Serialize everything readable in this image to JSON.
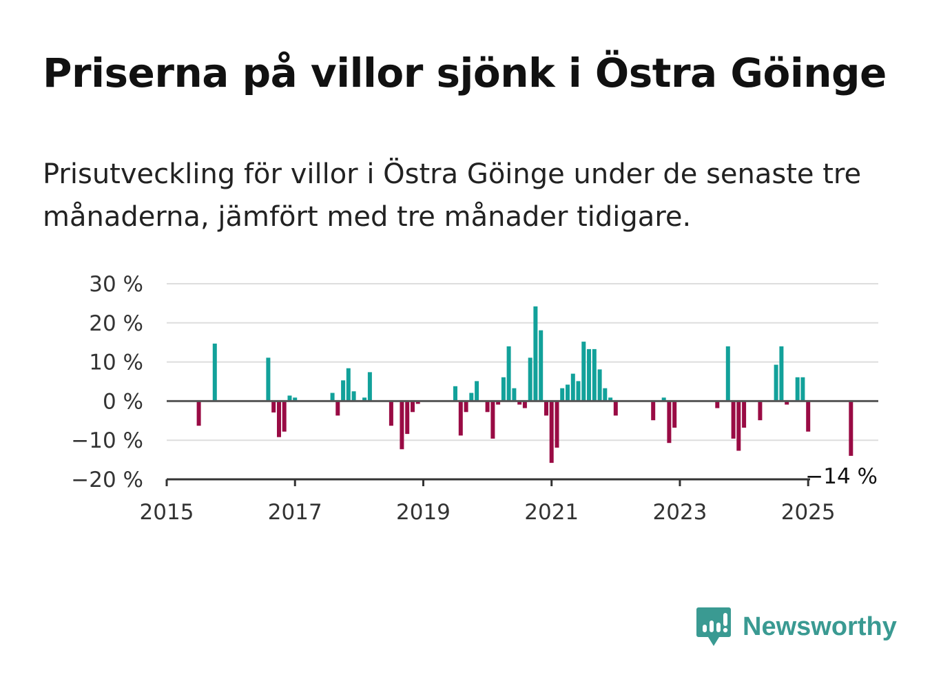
{
  "title": "Priserna på villor sjönk i Östra Göinge",
  "subtitle": "Prisutveckling för villor i Östra Göinge under de senaste tre månaderna, jämfört med tre månader tidigare.",
  "brand": {
    "name": "Newsworthy",
    "color": "#3a9a92"
  },
  "colors": {
    "positive": "#12a19a",
    "negative": "#990b44",
    "grid": "#dddddd",
    "zero": "#555555"
  },
  "chart_data": {
    "type": "bar",
    "x_start": "2015-01",
    "ylim": [
      -20,
      30
    ],
    "yticks": [
      30,
      20,
      10,
      0,
      -10,
      -20
    ],
    "ytick_labels": [
      "30 %",
      "20 %",
      "10 %",
      "0 %",
      "−10 %",
      "−20 %"
    ],
    "xticks": [
      "2015",
      "2017",
      "2019",
      "2021",
      "2023",
      "2025"
    ],
    "last_value_label": "−14 %",
    "series": [
      {
        "values": [
          {
            "x": "2015-07",
            "y": -6.3
          },
          {
            "x": "2015-10",
            "y": 14.7
          },
          {
            "x": "2016-08",
            "y": 11.1
          },
          {
            "x": "2016-09",
            "y": -2.9
          },
          {
            "x": "2016-10",
            "y": -9.2
          },
          {
            "x": "2016-11",
            "y": -7.8
          },
          {
            "x": "2016-12",
            "y": 1.4
          },
          {
            "x": "2017-01",
            "y": 0.9
          },
          {
            "x": "2017-08",
            "y": 2.1
          },
          {
            "x": "2017-09",
            "y": -3.7
          },
          {
            "x": "2017-10",
            "y": 5.3
          },
          {
            "x": "2017-11",
            "y": 8.4
          },
          {
            "x": "2017-12",
            "y": 2.5
          },
          {
            "x": "2018-02",
            "y": 0.9
          },
          {
            "x": "2018-03",
            "y": 7.4
          },
          {
            "x": "2018-07",
            "y": -6.3
          },
          {
            "x": "2018-09",
            "y": -12.3
          },
          {
            "x": "2018-10",
            "y": -8.4
          },
          {
            "x": "2018-11",
            "y": -2.8
          },
          {
            "x": "2018-12",
            "y": -0.7
          },
          {
            "x": "2019-07",
            "y": 3.8
          },
          {
            "x": "2019-08",
            "y": -8.8
          },
          {
            "x": "2019-09",
            "y": -2.8
          },
          {
            "x": "2019-10",
            "y": 2.1
          },
          {
            "x": "2019-11",
            "y": 5.1
          },
          {
            "x": "2020-01",
            "y": -2.8
          },
          {
            "x": "2020-02",
            "y": -9.6
          },
          {
            "x": "2020-03",
            "y": -0.9
          },
          {
            "x": "2020-04",
            "y": 6.1
          },
          {
            "x": "2020-05",
            "y": 14.0
          },
          {
            "x": "2020-06",
            "y": 3.3
          },
          {
            "x": "2020-07",
            "y": -0.9
          },
          {
            "x": "2020-08",
            "y": -1.8
          },
          {
            "x": "2020-09",
            "y": 11.1
          },
          {
            "x": "2020-10",
            "y": 24.2
          },
          {
            "x": "2020-11",
            "y": 18.1
          },
          {
            "x": "2020-12",
            "y": -3.7
          },
          {
            "x": "2021-01",
            "y": -15.8
          },
          {
            "x": "2021-02",
            "y": -11.9
          },
          {
            "x": "2021-03",
            "y": 3.3
          },
          {
            "x": "2021-04",
            "y": 4.2
          },
          {
            "x": "2021-05",
            "y": 7.0
          },
          {
            "x": "2021-06",
            "y": 5.1
          },
          {
            "x": "2021-07",
            "y": 15.2
          },
          {
            "x": "2021-08",
            "y": 13.3
          },
          {
            "x": "2021-09",
            "y": 13.3
          },
          {
            "x": "2021-10",
            "y": 8.1
          },
          {
            "x": "2021-11",
            "y": 3.3
          },
          {
            "x": "2021-12",
            "y": 0.9
          },
          {
            "x": "2022-01",
            "y": -3.7
          },
          {
            "x": "2022-08",
            "y": -4.9
          },
          {
            "x": "2022-10",
            "y": 0.9
          },
          {
            "x": "2022-11",
            "y": -10.7
          },
          {
            "x": "2022-12",
            "y": -6.8
          },
          {
            "x": "2023-08",
            "y": -1.8
          },
          {
            "x": "2023-10",
            "y": 14.0
          },
          {
            "x": "2023-11",
            "y": -9.6
          },
          {
            "x": "2023-12",
            "y": -12.7
          },
          {
            "x": "2024-01",
            "y": -6.8
          },
          {
            "x": "2024-04",
            "y": -4.9
          },
          {
            "x": "2024-07",
            "y": 9.3
          },
          {
            "x": "2024-08",
            "y": 14.0
          },
          {
            "x": "2024-09",
            "y": -0.9
          },
          {
            "x": "2024-11",
            "y": 6.1
          },
          {
            "x": "2024-12",
            "y": 6.1
          },
          {
            "x": "2025-01",
            "y": -7.8
          },
          {
            "x": "2025-09",
            "y": -14.0
          }
        ]
      }
    ]
  }
}
